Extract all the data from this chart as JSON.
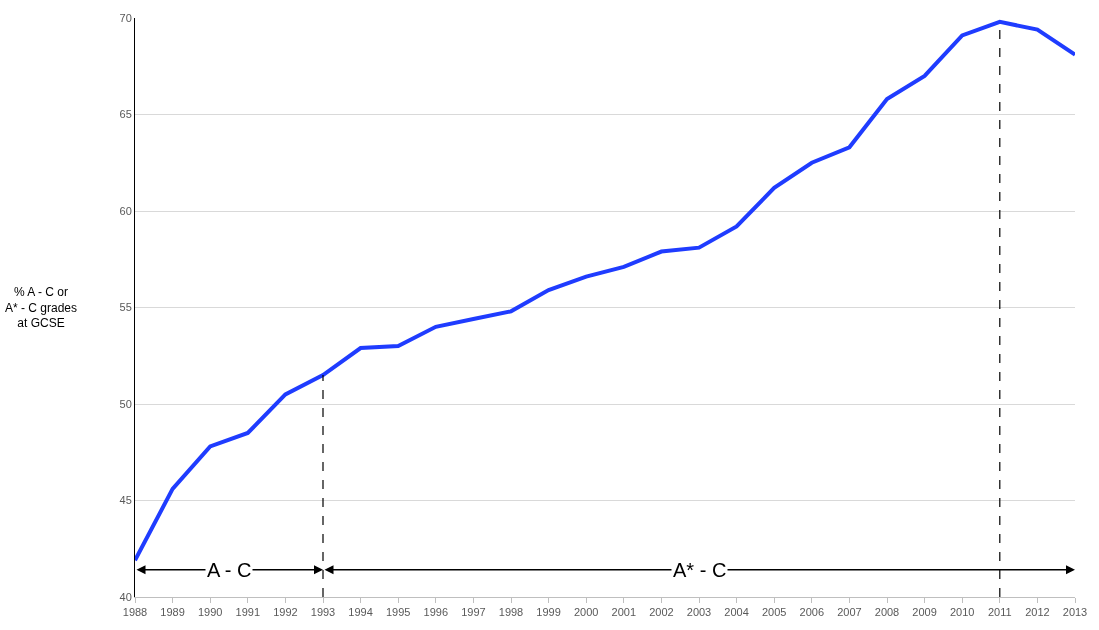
{
  "chart_data": {
    "type": "line",
    "x": [
      1988,
      1989,
      1990,
      1991,
      1992,
      1993,
      1994,
      1995,
      1996,
      1997,
      1998,
      1999,
      2000,
      2001,
      2002,
      2003,
      2004,
      2005,
      2006,
      2007,
      2008,
      2009,
      2010,
      2011,
      2012,
      2013
    ],
    "series": [
      {
        "color": "#1f3cff",
        "values": [
          41.9,
          45.6,
          47.8,
          48.5,
          50.5,
          51.5,
          52.9,
          53.0,
          54.0,
          54.4,
          54.8,
          55.9,
          56.6,
          57.1,
          57.9,
          58.1,
          59.2,
          61.2,
          62.5,
          63.3,
          65.8,
          67.0,
          69.1,
          69.8,
          69.4,
          68.1
        ]
      }
    ],
    "ylabel": "% A - C or\nA* - C grades\nat GCSE",
    "xlim": [
      1988,
      2013
    ],
    "xticks": [
      1988,
      1989,
      1990,
      1991,
      1992,
      1993,
      1994,
      1995,
      1996,
      1997,
      1998,
      1999,
      2000,
      2001,
      2002,
      2003,
      2004,
      2005,
      2006,
      2007,
      2008,
      2009,
      2010,
      2011,
      2012,
      2013
    ],
    "ylim": [
      40,
      70
    ],
    "yticks": [
      40,
      45,
      50,
      55,
      60,
      65,
      70
    ],
    "grid": "y",
    "marker": "none",
    "line_style": "solid",
    "ref_lines": [
      {
        "axis": "x",
        "value": 1993,
        "color": "#000000",
        "line_style": "dashed"
      },
      {
        "axis": "x",
        "value": 2011,
        "color": "#000000",
        "line_style": "dashed"
      }
    ],
    "annotations": [
      "A - C",
      "A* - C"
    ]
  }
}
